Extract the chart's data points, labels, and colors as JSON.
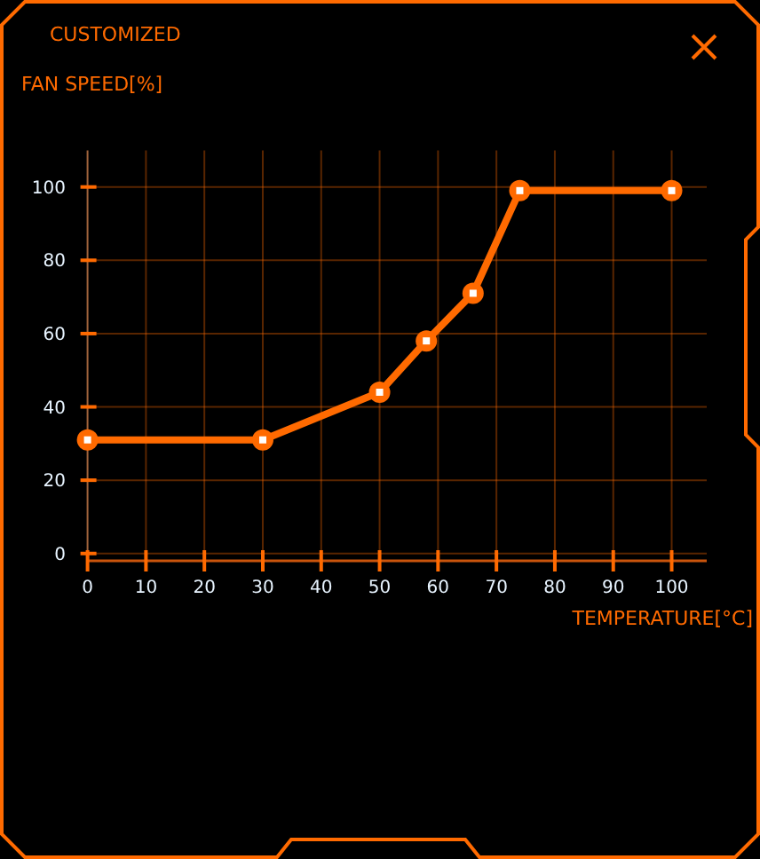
{
  "chart_data": {
    "type": "line",
    "title": "CUSTOMIZED",
    "ylabel": "FAN SPEED[%]",
    "xlabel": "TEMPERATURE[°C]",
    "x": [
      0,
      30,
      50,
      58,
      66,
      74,
      100
    ],
    "series": [
      {
        "color": "#ff6a00",
        "values": [
          31,
          31,
          44,
          58,
          71,
          99,
          99
        ]
      }
    ],
    "xlim": [
      0,
      106
    ],
    "xticks": [
      0,
      10,
      20,
      30,
      40,
      50,
      60,
      70,
      80,
      90,
      100
    ],
    "ylim": [
      -2,
      110
    ],
    "yticks": [
      0,
      20,
      40,
      60,
      80,
      100
    ],
    "grid": true,
    "marker": "circle",
    "line_style": "solid"
  }
}
